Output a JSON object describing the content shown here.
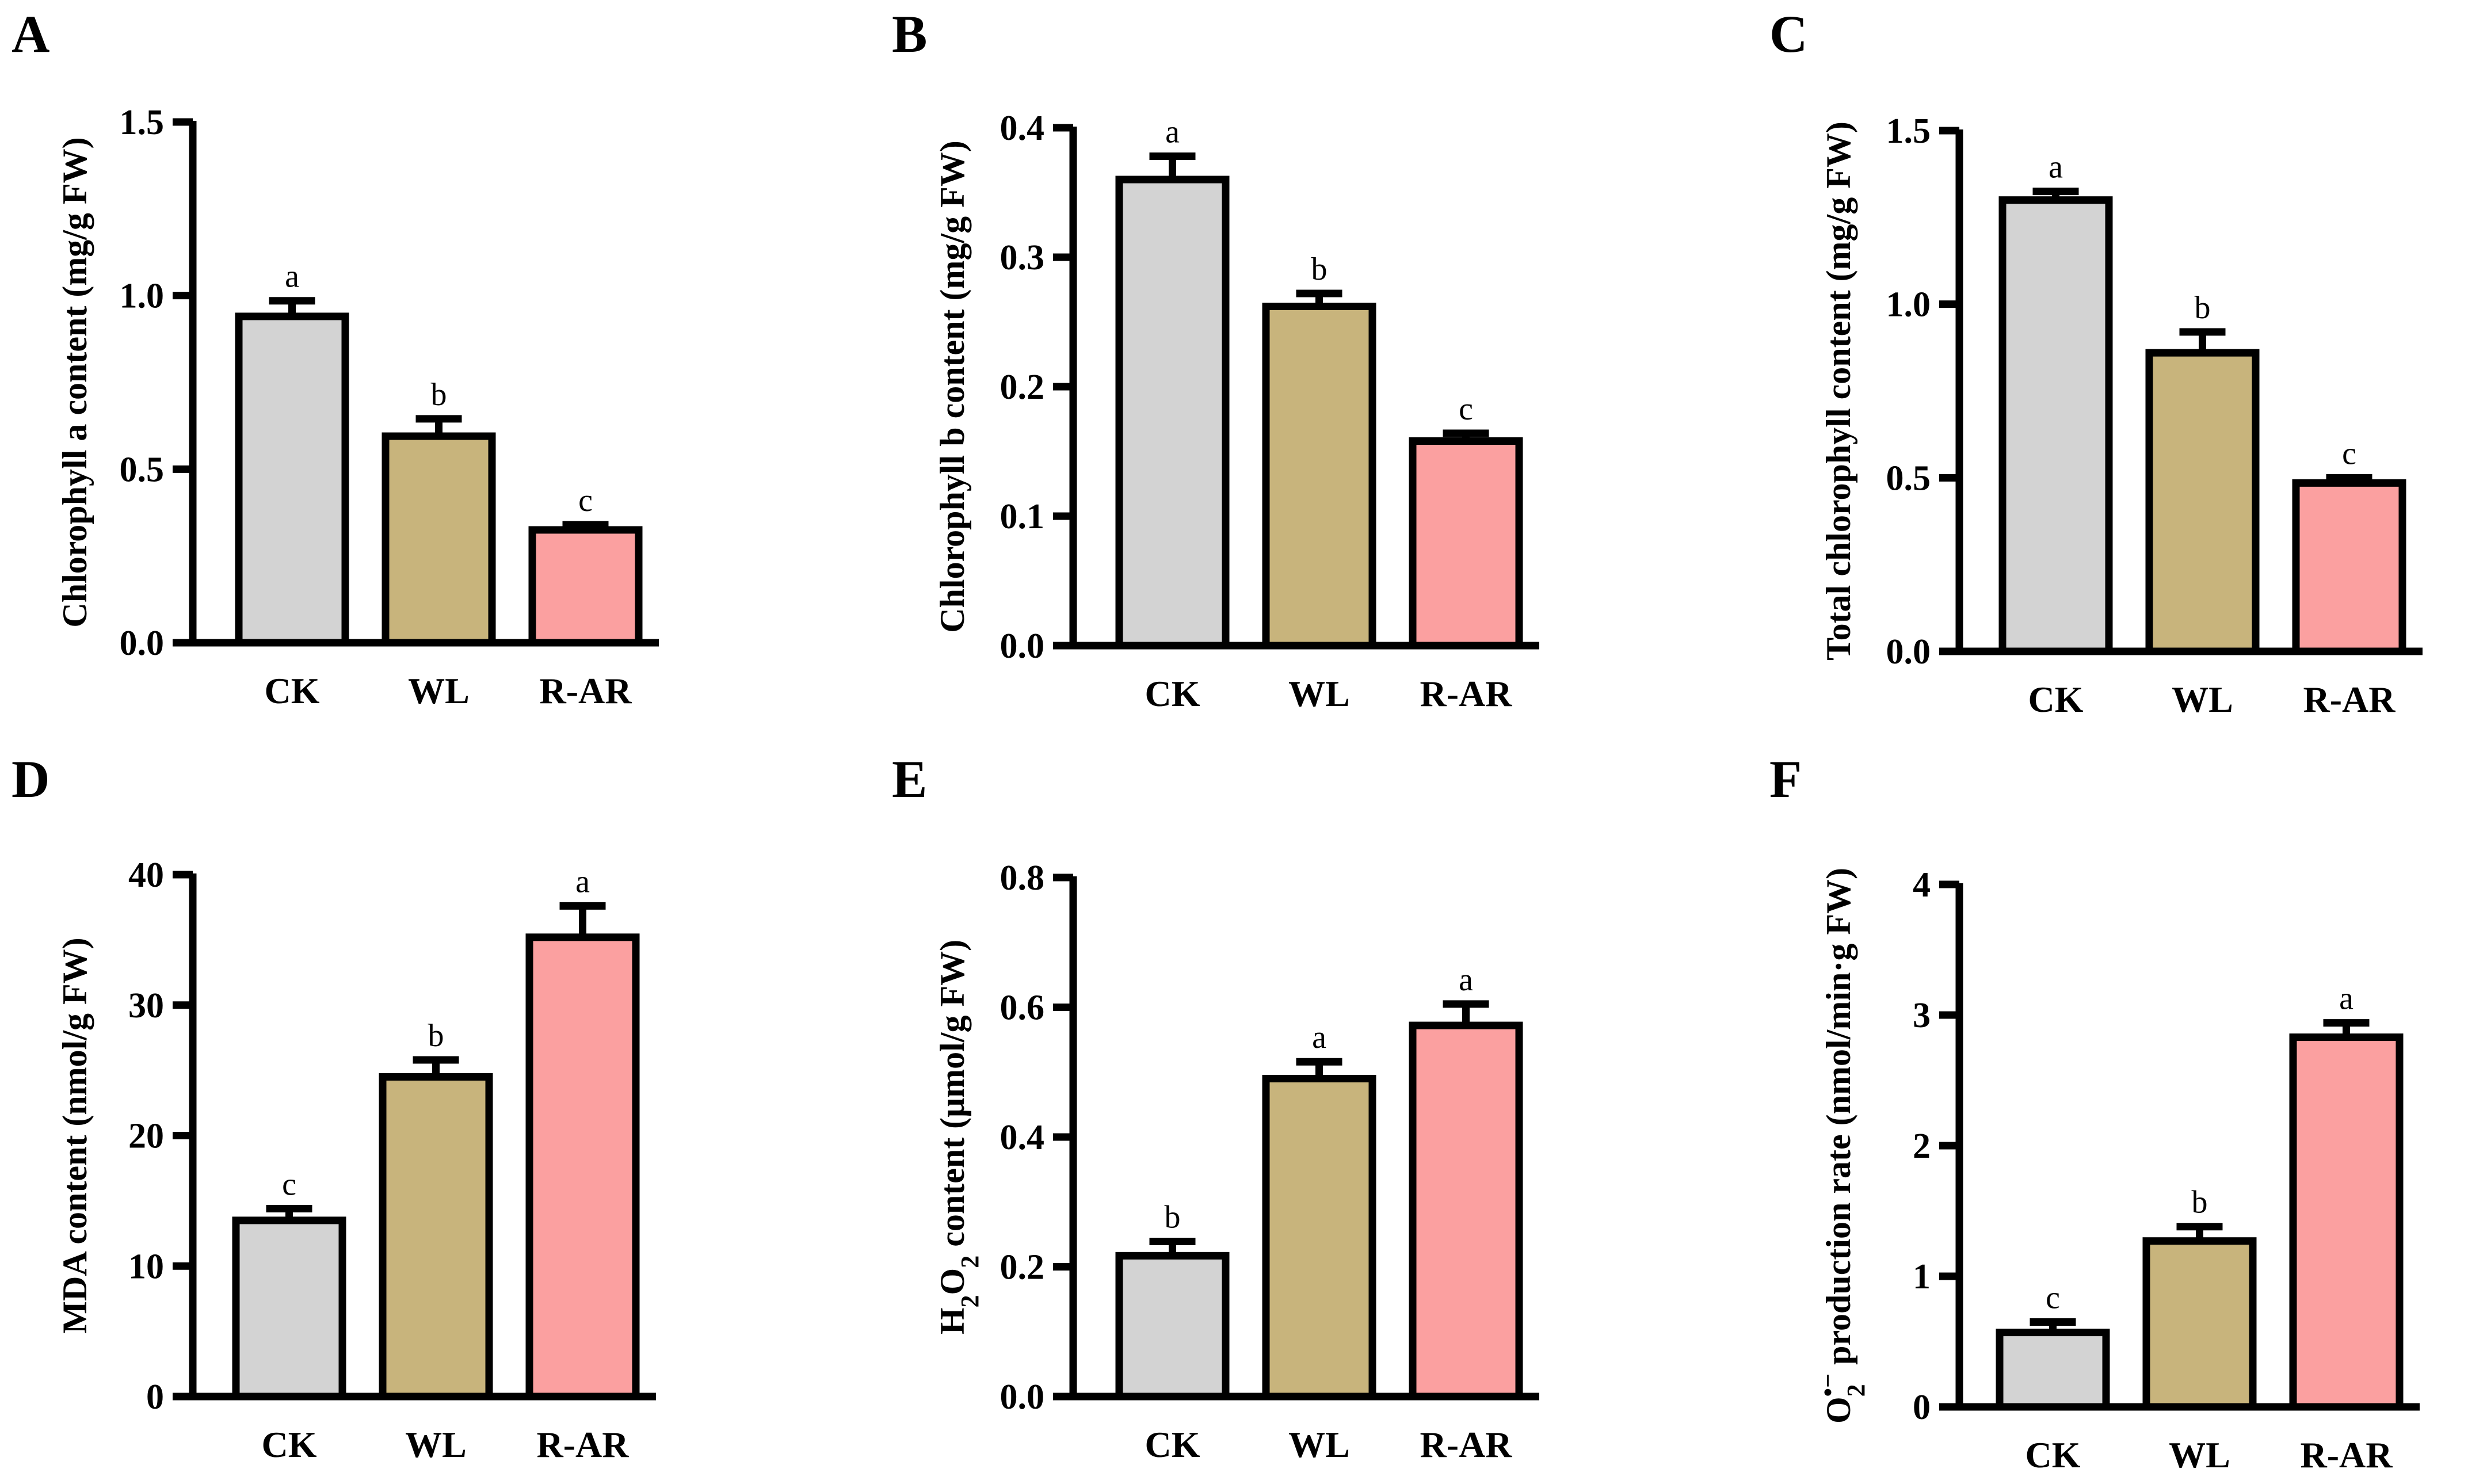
{
  "colors": {
    "CK": "#d3d3d3",
    "WL": "#c8b47c",
    "R-AR": "#fba0a0",
    "stroke": "#000000"
  },
  "chart_data": [
    {
      "panel": "A",
      "type": "bar",
      "categories": [
        "CK",
        "WL",
        "R-AR"
      ],
      "values": [
        0.94,
        0.595,
        0.325
      ],
      "errors": [
        0.045,
        0.05,
        0.015
      ],
      "significance": [
        "a",
        "b",
        "c"
      ],
      "ylabel": "Chlorophyll a content (mg/g FW)",
      "ylim": [
        0,
        1.5
      ],
      "yticks": [
        "0.0",
        "0.5",
        "1.0",
        "1.5"
      ]
    },
    {
      "panel": "B",
      "type": "bar",
      "categories": [
        "CK",
        "WL",
        "R-AR"
      ],
      "values": [
        0.36,
        0.262,
        0.158
      ],
      "errors": [
        0.018,
        0.01,
        0.006
      ],
      "significance": [
        "a",
        "b",
        "c"
      ],
      "ylabel": "Chlorophyll b content (mg/g FW)",
      "ylim": [
        0,
        0.4
      ],
      "yticks": [
        "0.0",
        "0.1",
        "0.2",
        "0.3",
        "0.4"
      ]
    },
    {
      "panel": "C",
      "type": "bar",
      "categories": [
        "CK",
        "WL",
        "R-AR"
      ],
      "values": [
        1.3,
        0.86,
        0.485
      ],
      "errors": [
        0.025,
        0.06,
        0.015
      ],
      "significance": [
        "a",
        "b",
        "c"
      ],
      "ylabel": "Total chlorophyll content (mg/g FW)",
      "ylim": [
        0,
        1.5
      ],
      "yticks": [
        "0.0",
        "0.5",
        "1.0",
        "1.5"
      ]
    },
    {
      "panel": "D",
      "type": "bar",
      "categories": [
        "CK",
        "WL",
        "R-AR"
      ],
      "values": [
        13.5,
        24.5,
        35.2
      ],
      "errors": [
        0.9,
        1.3,
        2.4
      ],
      "significance": [
        "c",
        "b",
        "a"
      ],
      "ylabel": "MDA content (nmol/g FW)",
      "ylim": [
        0,
        40
      ],
      "yticks": [
        "0",
        "10",
        "20",
        "30",
        "40"
      ]
    },
    {
      "panel": "E",
      "type": "bar",
      "categories": [
        "CK",
        "WL",
        "R-AR"
      ],
      "values": [
        0.217,
        0.49,
        0.572
      ],
      "errors": [
        0.022,
        0.026,
        0.033
      ],
      "significance": [
        "b",
        "a",
        "a"
      ],
      "ylabel": "H2O2 content (μmol/g FW)",
      "ylim": [
        0,
        0.8
      ],
      "yticks": [
        "0.0",
        "0.2",
        "0.4",
        "0.6",
        "0.8"
      ]
    },
    {
      "panel": "F",
      "type": "bar",
      "categories": [
        "CK",
        "WL",
        "R-AR"
      ],
      "values": [
        0.57,
        1.27,
        2.83
      ],
      "errors": [
        0.08,
        0.11,
        0.11
      ],
      "significance": [
        "c",
        "b",
        "a"
      ],
      "ylabel": "O2•− production rate (nmol/min·g FW)",
      "ylim": [
        0,
        4
      ],
      "yticks": [
        "0",
        "1",
        "2",
        "3",
        "4"
      ]
    }
  ]
}
